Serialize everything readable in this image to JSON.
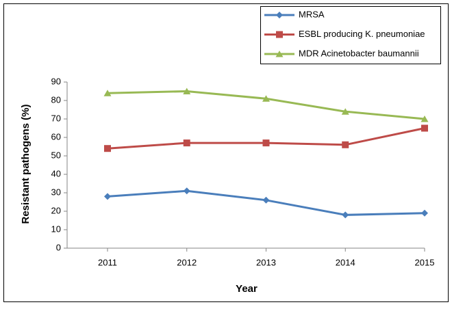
{
  "chart_data": {
    "type": "line",
    "categories": [
      "2011",
      "2012",
      "2013",
      "2014",
      "2015"
    ],
    "series": [
      {
        "name": "MRSA",
        "color": "#4a7ebb",
        "marker": "diamond",
        "values": [
          28,
          31,
          26,
          18,
          19
        ]
      },
      {
        "name": "ESBL producing K. pneumoniae",
        "color": "#be4b48",
        "marker": "square",
        "values": [
          54,
          57,
          57,
          56,
          65
        ]
      },
      {
        "name": "MDR Acinetobacter baumannii",
        "color": "#98b954",
        "marker": "triangle",
        "values": [
          84,
          85,
          81,
          74,
          70
        ]
      }
    ],
    "xlabel": "Year",
    "ylabel": "Resistant pathogens (%)",
    "ylim": [
      0,
      90
    ],
    "yticks": [
      0,
      10,
      20,
      30,
      40,
      50,
      60,
      70,
      80,
      90
    ],
    "legend": "top-right"
  }
}
